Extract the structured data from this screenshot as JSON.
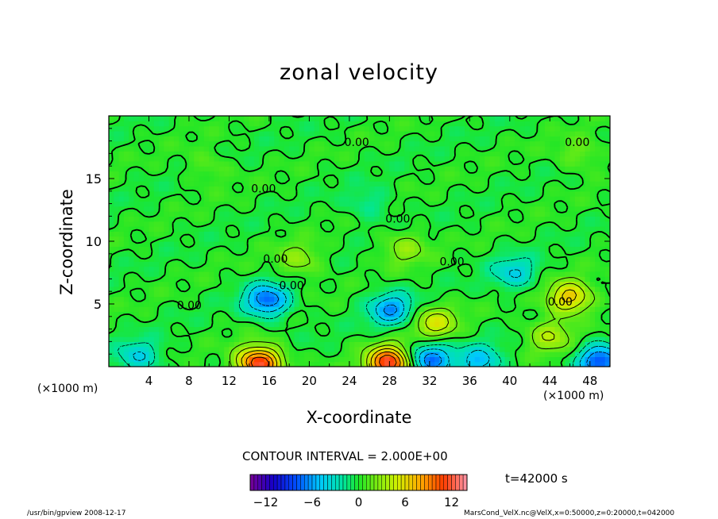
{
  "chart_data": {
    "type": "heatmap",
    "title": "zonal velocity",
    "xlabel": "X-coordinate",
    "ylabel": "Z-coordinate",
    "x_unit": "(×1000 m)",
    "xlim": [
      0,
      50
    ],
    "ylim": [
      0,
      20
    ],
    "x_ticks": [
      4,
      8,
      12,
      16,
      20,
      24,
      28,
      32,
      36,
      40,
      44,
      48
    ],
    "y_ticks": [
      5,
      10,
      15
    ],
    "contour_interval_text": "CONTOUR INTERVAL = 2.000E+00",
    "contour_labels": [
      "0.00",
      "0.00",
      "0.00",
      "0.00",
      "0.00",
      "0.00",
      "0.00",
      "0.00",
      "0.00"
    ],
    "colorbar": {
      "min": -14,
      "max": 14,
      "ticks": [
        -12,
        -6,
        0,
        6,
        12
      ]
    },
    "blobs": [
      {
        "x": 15.8,
        "z": 5.3,
        "value": -7.5
      },
      {
        "x": 28.2,
        "z": 4.6,
        "value": -6
      },
      {
        "x": 40.5,
        "z": 7.5,
        "value": -4
      },
      {
        "x": 46,
        "z": 5.5,
        "value": 7
      },
      {
        "x": 29.5,
        "z": 9.5,
        "value": 3
      },
      {
        "x": 19,
        "z": 8.5,
        "value": 3
      },
      {
        "x": 15,
        "z": 0.3,
        "value": 12
      },
      {
        "x": 28,
        "z": 0.3,
        "value": 12
      },
      {
        "x": 32,
        "z": 0.6,
        "value": -7
      },
      {
        "x": 37,
        "z": 0.4,
        "value": -5
      },
      {
        "x": 3,
        "z": 0.8,
        "value": -4
      },
      {
        "x": 49,
        "z": 0.5,
        "value": -8
      },
      {
        "x": 32.5,
        "z": 3.5,
        "value": 5
      },
      {
        "x": 44,
        "z": 2.5,
        "value": 4
      },
      {
        "x": 26,
        "z": 13,
        "value": -2
      },
      {
        "x": 10,
        "z": 16,
        "value": 1.5
      },
      {
        "x": 47,
        "z": 17,
        "value": 2
      }
    ]
  },
  "time_label": "t=42000 s",
  "footer_left": "/usr/bin/gpview   2008-12-17",
  "footer_right": "MarsCond_VelX.nc@VelX,x=0:50000,z=0:20000,t=042000"
}
